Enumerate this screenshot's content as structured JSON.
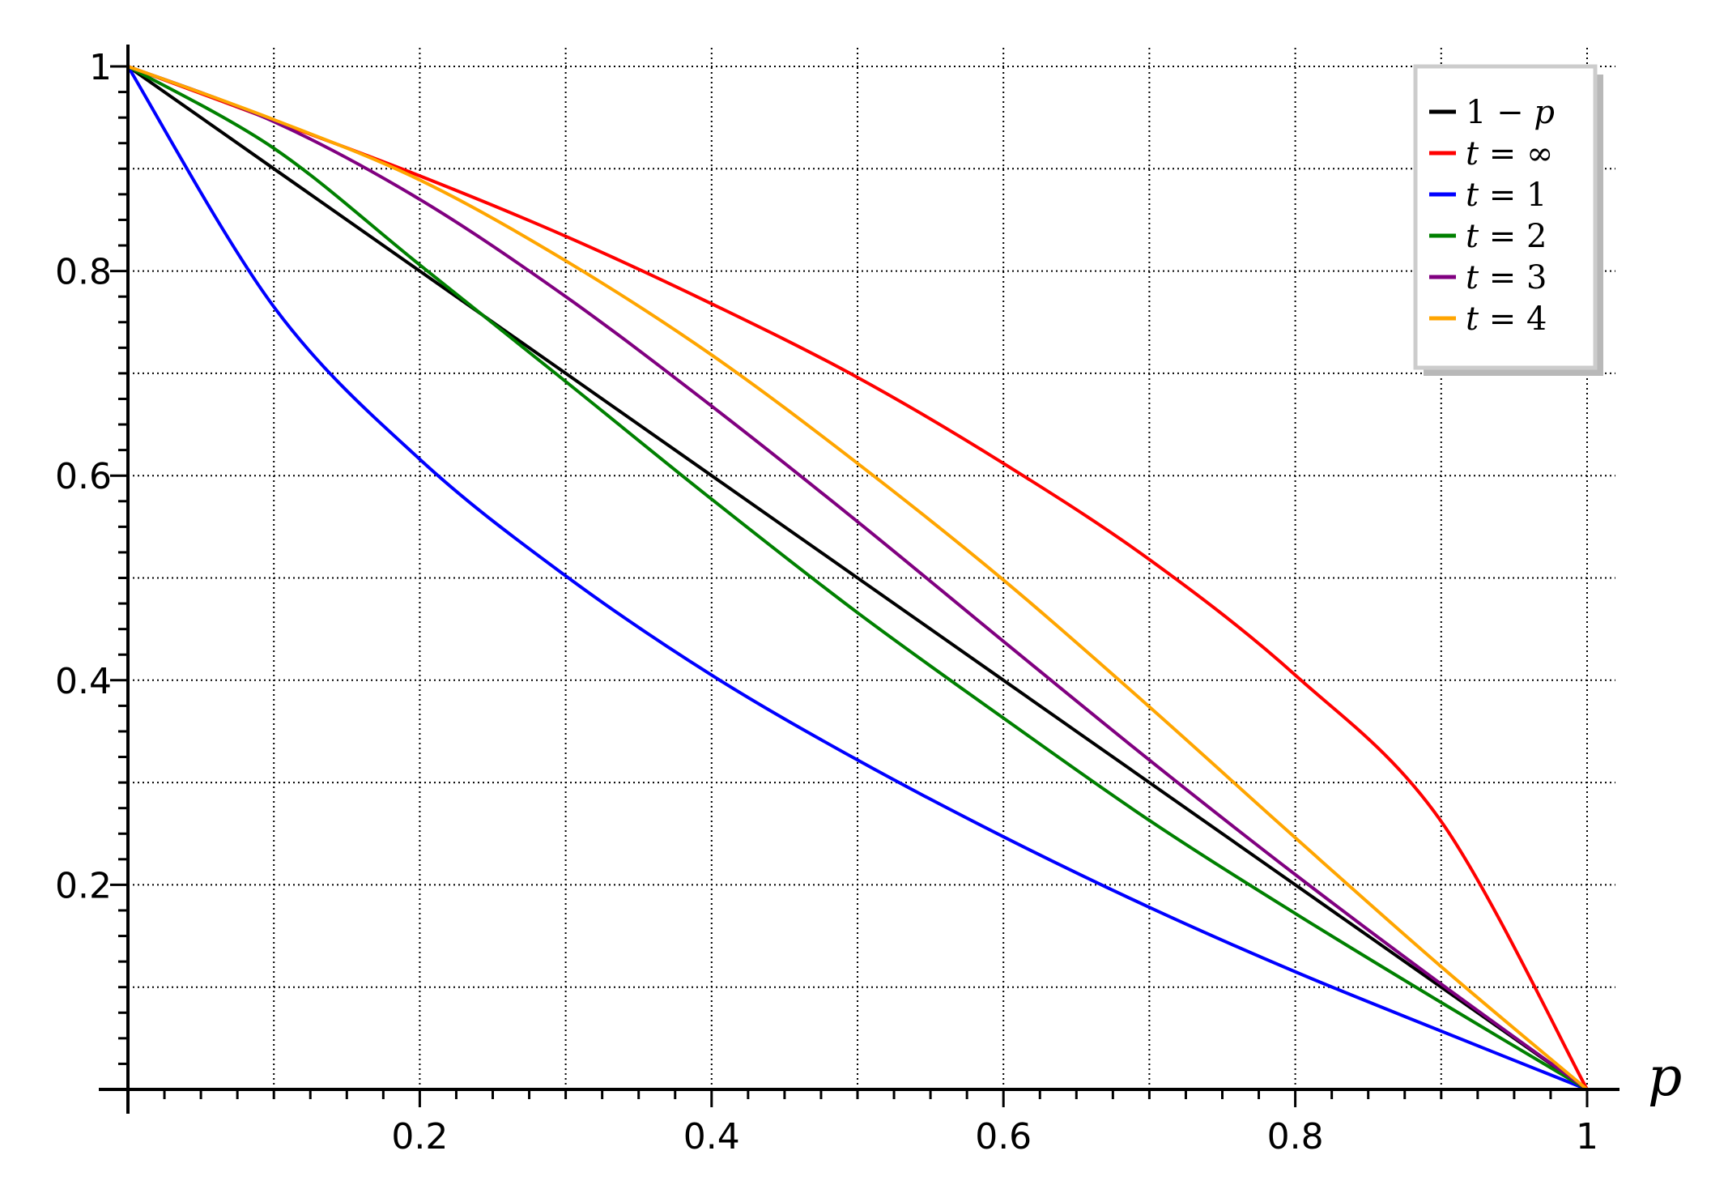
{
  "chart_data": {
    "type": "line",
    "xlabel": "p",
    "ylabel": "",
    "xlim": [
      0,
      1
    ],
    "ylim": [
      0,
      1
    ],
    "grid": true,
    "x_ticks": [
      0.2,
      0.4,
      0.6,
      0.8,
      1
    ],
    "x_tick_labels": [
      "0.2",
      "0.4",
      "0.6",
      "0.8",
      "1"
    ],
    "y_ticks": [
      0.2,
      0.4,
      0.6,
      0.8,
      1
    ],
    "y_tick_labels": [
      "0.2",
      "0.4",
      "0.6",
      "0.8",
      "1"
    ],
    "legend_position": "top-right",
    "x": [
      0,
      0.1,
      0.2,
      0.3,
      0.4,
      0.5,
      0.6,
      0.7,
      0.8,
      0.9,
      1
    ],
    "series": [
      {
        "name": "1 − p",
        "latex": [
          "1",
          " − ",
          "p"
        ],
        "color": "#000000",
        "values": [
          1,
          0.9,
          0.8,
          0.7,
          0.6,
          0.5,
          0.4,
          0.3,
          0.2,
          0.1,
          0
        ]
      },
      {
        "name": "t = ∞",
        "latex": [
          "t",
          " = ∞"
        ],
        "color": "#ff0000",
        "values": [
          1,
          0.947,
          0.893,
          0.834,
          0.768,
          0.696,
          0.612,
          0.518,
          0.405,
          0.262,
          0
        ]
      },
      {
        "name": "t = 1",
        "latex": [
          "t",
          " = 1"
        ],
        "color": "#0000ff",
        "values": [
          1,
          0.765,
          0.616,
          0.502,
          0.405,
          0.322,
          0.247,
          0.178,
          0.115,
          0.057,
          0
        ]
      },
      {
        "name": "t = 2",
        "latex": [
          "t",
          " = 2"
        ],
        "color": "#008000",
        "values": [
          1,
          0.92,
          0.806,
          0.692,
          0.577,
          0.466,
          0.363,
          0.263,
          0.172,
          0.085,
          0
        ]
      },
      {
        "name": "t = 3",
        "latex": [
          "t",
          " = 3"
        ],
        "color": "#800080",
        "values": [
          1,
          0.946,
          0.87,
          0.775,
          0.668,
          0.555,
          0.438,
          0.322,
          0.21,
          0.103,
          0
        ]
      },
      {
        "name": "t = 4",
        "latex": [
          "t",
          " = 4"
        ],
        "color": "#ffa500",
        "values": [
          1,
          0.948,
          0.889,
          0.81,
          0.718,
          0.612,
          0.498,
          0.374,
          0.246,
          0.12,
          0
        ]
      }
    ]
  }
}
